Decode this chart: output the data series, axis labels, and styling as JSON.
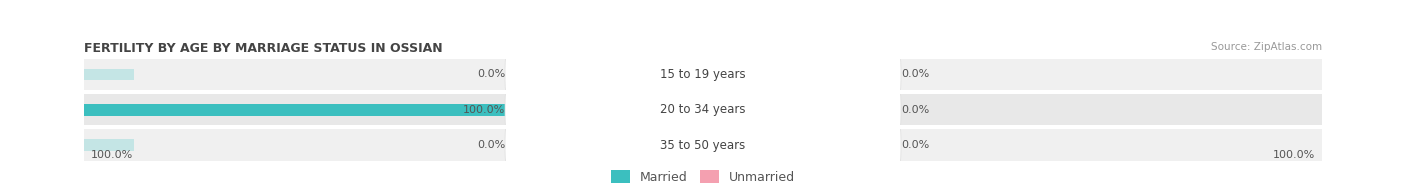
{
  "title": "FERTILITY BY AGE BY MARRIAGE STATUS IN OSSIAN",
  "source": "Source: ZipAtlas.com",
  "rows": [
    {
      "label": "15 to 19 years",
      "married": 0.0,
      "unmarried": 0.0
    },
    {
      "label": "20 to 34 years",
      "married": 100.0,
      "unmarried": 0.0
    },
    {
      "label": "35 to 50 years",
      "married": 0.0,
      "unmarried": 0.0
    }
  ],
  "married_color": "#3bbfbf",
  "unmarried_color": "#f4a0b0",
  "bar_bg_color": "#e4e4e4",
  "bar_bg_color_light": "#ebebeb",
  "label_bg_color": "#ffffff",
  "label_text_color": "#444444",
  "title_color": "#444444",
  "source_color": "#999999",
  "value_color": "#555555",
  "left_axis_label": "100.0%",
  "right_axis_label": "100.0%",
  "legend_married": "Married",
  "legend_unmarried": "Unmarried",
  "total_width": 100.0,
  "fig_bg": "#ffffff",
  "row_bg_colors": [
    "#f0f0f0",
    "#e8e8e8",
    "#f0f0f0"
  ]
}
